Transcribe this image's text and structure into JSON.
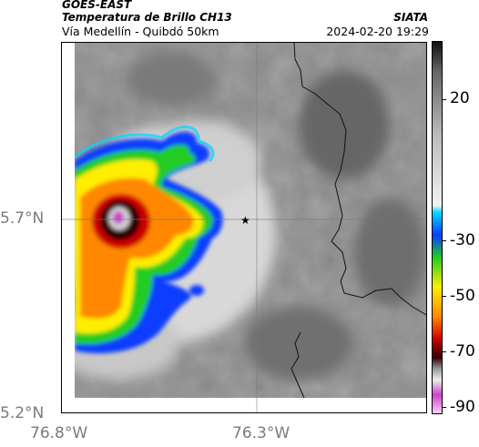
{
  "header": {
    "satellite": "GOES-EAST",
    "product": "Temperatura de Brillo CH13",
    "region": "Vía Medellín - Quibdó 50km",
    "source": "SIATA",
    "datetime": "2024-02-20 19:29"
  },
  "map": {
    "lat_ticks": [
      "5.7°N",
      "5.2°N"
    ],
    "lon_ticks": [
      "76.8°W",
      "76.3°W"
    ],
    "marker_icon": "star-icon"
  },
  "colorbar": {
    "labels": [
      "20",
      "-30",
      "-50",
      "-70",
      "-90"
    ],
    "colors": {
      "warm_top": "#111111",
      "cyan": "#00d7ff",
      "blue": "#0a3cff",
      "green": "#22cc22",
      "yellow": "#ffee00",
      "orange": "#ff8800",
      "red": "#cc0000",
      "dark": "#330000",
      "magenta": "#cc44cc"
    }
  }
}
